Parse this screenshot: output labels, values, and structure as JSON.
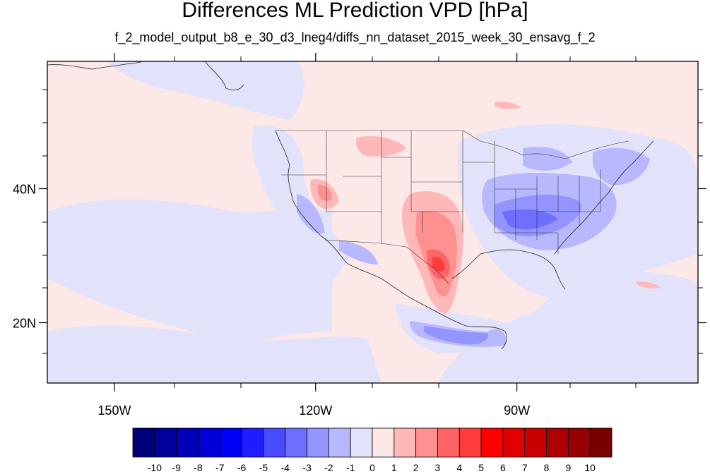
{
  "title": "Differences ML Prediction VPD [hPa]",
  "subtitle": "f_2_model_output_b8_e_30_d3_lneg4/diffs_nn_dataset_2015_week_30_ensavg_f_2",
  "map": {
    "lon_range": [
      -160,
      -63
    ],
    "lat_range": [
      11,
      59
    ],
    "lon_ticks": [
      {
        "value": -150,
        "label": "150W"
      },
      {
        "value": -120,
        "label": "120W"
      },
      {
        "value": -90,
        "label": "90W"
      }
    ],
    "lat_ticks": [
      {
        "value": 40,
        "label": "40N"
      },
      {
        "value": 20,
        "label": "20N"
      }
    ],
    "background_color": "#fde8e8"
  },
  "colorbar": {
    "labels": [
      "-10",
      "-9",
      "-8",
      "-7",
      "-6",
      "-5",
      "-4",
      "-3",
      "-2",
      "-1",
      "0",
      "1",
      "2",
      "3",
      "4",
      "5",
      "6",
      "7",
      "8",
      "9",
      "10"
    ],
    "colors": [
      "#00007a",
      "#00009a",
      "#0000b8",
      "#0000d6",
      "#0000f2",
      "#1e1eff",
      "#4a4aff",
      "#6e6eff",
      "#9494ff",
      "#b8b8ff",
      "#e2e2fa",
      "#fde8e8",
      "#ffb8b8",
      "#ff9090",
      "#ff6464",
      "#ff3c3c",
      "#ff0000",
      "#e00000",
      "#c80000",
      "#ae0000",
      "#960000",
      "#7a0000"
    ]
  }
}
